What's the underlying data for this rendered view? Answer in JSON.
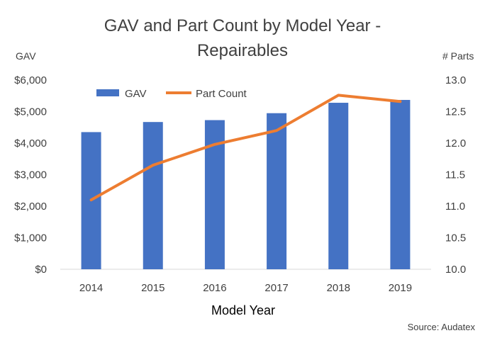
{
  "chart_data": {
    "type": "bar",
    "title": [
      "GAV and Part Count by Model Year -",
      "Repairables"
    ],
    "xlabel": "Model Year",
    "ylabel": "GAV",
    "y2label": "# Parts",
    "categories": [
      "2014",
      "2015",
      "2016",
      "2017",
      "2018",
      "2019"
    ],
    "ylim": [
      0,
      6000
    ],
    "y2lim": [
      10.0,
      13.0
    ],
    "yticks": [
      "$0",
      "$1,000",
      "$2,000",
      "$3,000",
      "$4,000",
      "$5,000",
      "$6,000"
    ],
    "y2ticks": [
      "10.0",
      "10.5",
      "11.0",
      "11.5",
      "12.0",
      "12.5",
      "13.0"
    ],
    "series": [
      {
        "name": "GAV",
        "type": "bar",
        "axis": "left",
        "color": "#4472C4",
        "values": [
          4350,
          4670,
          4730,
          4950,
          5280,
          5370
        ]
      },
      {
        "name": "Part Count",
        "type": "line",
        "axis": "right",
        "color": "#ED7D31",
        "values": [
          11.1,
          11.65,
          11.98,
          12.2,
          12.76,
          12.66
        ]
      }
    ],
    "legend": "top-left",
    "grid": false,
    "source": "Source: Audatex"
  }
}
